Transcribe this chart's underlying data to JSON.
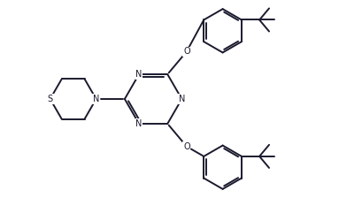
{
  "bg_color": "#ffffff",
  "bond_color": "#1a1a2e",
  "atom_label_color": "#1a1a2e",
  "line_width": 1.4,
  "figsize": [
    4.09,
    2.24
  ],
  "dpi": 100,
  "xlim": [
    0,
    9
  ],
  "ylim": [
    0,
    5
  ]
}
